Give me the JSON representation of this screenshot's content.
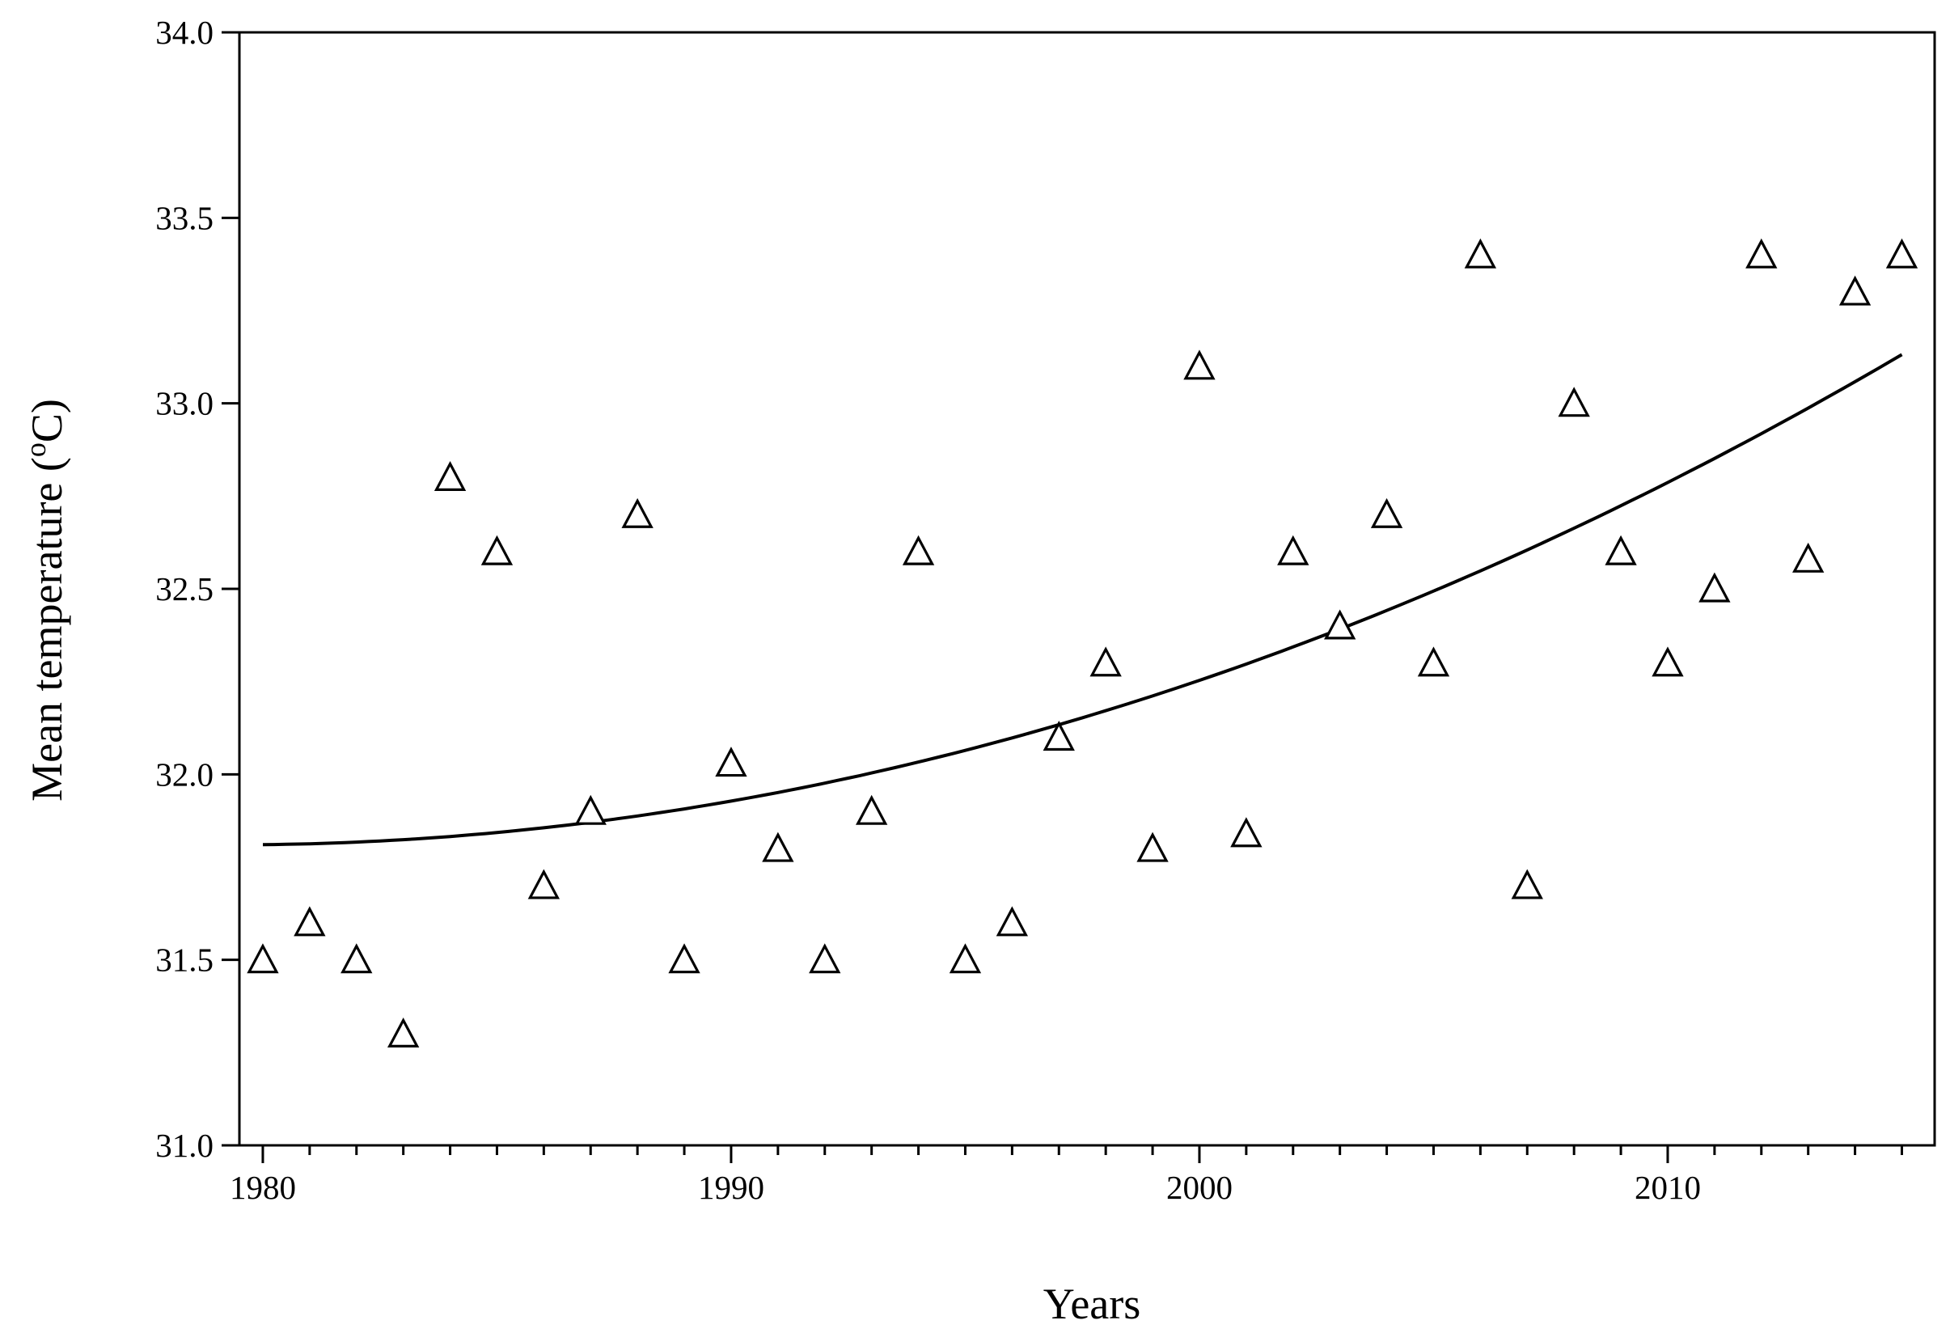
{
  "chart_data": {
    "type": "scatter",
    "xlabel": "Years",
    "ylabel": "Mean temperature (",
    "ylabel_sup": "o",
    "ylabel_unit": "C)",
    "xlim": [
      1979.5,
      2015.7
    ],
    "ylim": [
      31.0,
      34.0
    ],
    "xticks": [
      1980,
      1990,
      2000,
      2010
    ],
    "yticks": [
      "31.0",
      "31.5",
      "32.0",
      "32.5",
      "33.0",
      "33.5",
      "34.0"
    ],
    "minor_x_step": 1,
    "grid": false,
    "marker": "open-triangle",
    "series": [
      {
        "x": [
          1980,
          1981,
          1982,
          1983,
          1984,
          1985,
          1986,
          1987,
          1988,
          1989,
          1990,
          1991,
          1992,
          1993,
          1994,
          1995,
          1996,
          1997,
          1998,
          1999,
          2000,
          2001,
          2002,
          2003,
          2004,
          2005,
          2006,
          2007,
          2008,
          2009,
          2010,
          2011,
          2012,
          2013,
          2014,
          2015
        ],
        "y": [
          31.5,
          31.6,
          31.5,
          31.3,
          32.8,
          32.6,
          31.7,
          31.9,
          32.7,
          31.5,
          32.03,
          31.8,
          31.5,
          31.9,
          32.6,
          31.5,
          31.6,
          32.1,
          32.3,
          31.8,
          33.1,
          31.84,
          32.6,
          32.4,
          32.7,
          32.3,
          33.4,
          31.7,
          33.0,
          32.6,
          32.3,
          32.5,
          33.4,
          32.58,
          33.3,
          33.4
        ]
      }
    ],
    "fit_curve": {
      "type": "quadratic",
      "x_range": [
        1980,
        2015
      ],
      "points": [
        [
          1980,
          31.81
        ],
        [
          1990,
          31.93
        ],
        [
          2000,
          32.25
        ],
        [
          2010,
          32.79
        ],
        [
          2015,
          33.13
        ]
      ]
    }
  }
}
